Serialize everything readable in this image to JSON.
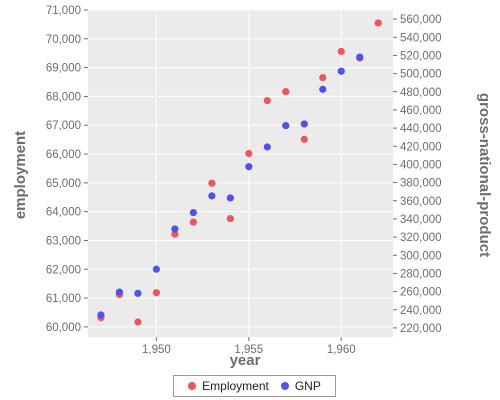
{
  "chart_data": {
    "type": "scatter",
    "xlabel": "year",
    "ylabel_left": "employment",
    "ylabel_right": "gross-national-product",
    "xlim": [
      1946.3,
      1962.8
    ],
    "ylim_left": [
      59650,
      71000
    ],
    "ylim_right": [
      210000,
      570000
    ],
    "x_ticks": [
      1950,
      1955,
      1960
    ],
    "x_tick_labels": [
      "1,950",
      "1,955",
      "1,960"
    ],
    "y_left_ticks": [
      60000,
      61000,
      62000,
      63000,
      64000,
      65000,
      66000,
      67000,
      68000,
      69000,
      70000,
      71000
    ],
    "y_left_tick_labels": [
      "60,000",
      "61,000",
      "62,000",
      "63,000",
      "64,000",
      "65,000",
      "66,000",
      "67,000",
      "68,000",
      "69,000",
      "70,000",
      "71,000"
    ],
    "y_right_ticks": [
      220000,
      240000,
      260000,
      280000,
      300000,
      320000,
      340000,
      360000,
      380000,
      400000,
      420000,
      440000,
      460000,
      480000,
      500000,
      520000,
      540000,
      560000
    ],
    "y_right_tick_labels": [
      "220,000",
      "240,000",
      "260,000",
      "280,000",
      "300,000",
      "320,000",
      "340,000",
      "360,000",
      "380,000",
      "400,000",
      "420,000",
      "440,000",
      "460,000",
      "480,000",
      "500,000",
      "520,000",
      "540,000",
      "560,000"
    ],
    "grid": true,
    "legend_position": "bottom-center",
    "series": [
      {
        "name": "Employment",
        "axis": "left",
        "color": "#f0545d",
        "x": [
          1947,
          1948,
          1949,
          1950,
          1951,
          1952,
          1953,
          1954,
          1955,
          1956,
          1957,
          1958,
          1959,
          1960,
          1961,
          1962
        ],
        "y": [
          60323,
          61122,
          60171,
          61187,
          63221,
          63639,
          64989,
          63761,
          66019,
          67857,
          68169,
          66513,
          68655,
          69564,
          69331,
          70551
        ]
      },
      {
        "name": "GNP",
        "axis": "right",
        "color": "#5151f2",
        "x": [
          1947,
          1948,
          1949,
          1950,
          1951,
          1952,
          1953,
          1954,
          1955,
          1956,
          1957,
          1958,
          1959,
          1960,
          1961
        ],
        "y": [
          234289,
          259426,
          258054,
          284599,
          328975,
          346999,
          365385,
          363112,
          397469,
          419180,
          442769,
          444546,
          482704,
          502601,
          518173
        ]
      }
    ]
  }
}
